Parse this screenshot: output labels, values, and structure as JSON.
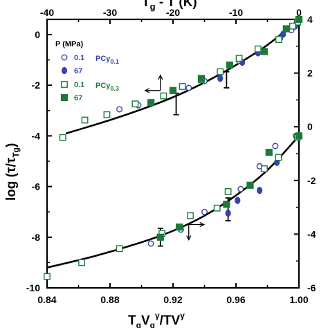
{
  "chart_data": {
    "type": "scatter",
    "title": "",
    "xlabel_bottom": "T",
    "xlabel_bottom_sub1": "g",
    "xlabel_bottom_mid": "V",
    "xlabel_bottom_sub2": "g",
    "xlabel_bottom_sup1": "γ",
    "xlabel_bottom_tail": "/TV",
    "xlabel_bottom_sup2": "γ",
    "xlabel_top": "T",
    "xlabel_top_sub": "g",
    "xlabel_top_tail": " - T (K)",
    "ylabel_left": "log (τ/τ",
    "ylabel_left_sub": "Tg",
    "ylabel_left_close": ")",
    "xlim": [
      0.84,
      1.0
    ],
    "ylim": [
      -10,
      0.6
    ],
    "top_xlim": [
      -40,
      0
    ],
    "right_ylim": [
      -6,
      4
    ],
    "xticks": [
      "0.84",
      "0.88",
      "0.92",
      "0.96",
      "1.00"
    ],
    "yticks_left": [
      "0",
      "-2",
      "-4",
      "-6",
      "-8",
      "-10"
    ],
    "xticks_top": [
      "-40",
      "-30",
      "-20",
      "-10",
      "0"
    ],
    "yticks_right": [
      "4",
      "2",
      "0",
      "-2",
      "-4",
      "-6"
    ],
    "legend": {
      "header": "P (MPa)",
      "entries": [
        {
          "marker": "open-circle",
          "color": "#3344aa",
          "pressure": "0.1",
          "group": "PCy",
          "group_sub": "0.1"
        },
        {
          "marker": "filled-circle",
          "color": "#3344aa",
          "pressure": "67",
          "group": "",
          "group_sub": ""
        },
        {
          "marker": "open-square",
          "color": "#1a7a3a",
          "pressure": "0.1",
          "group": "PCy",
          "group_sub": "0.3"
        },
        {
          "marker": "filled-square",
          "color": "#1a7a3a",
          "pressure": "67",
          "group": "",
          "group_sub": ""
        }
      ]
    },
    "series": [
      {
        "name": "PCy0.1 0.1 MPa",
        "marker": "open-circle",
        "color": "#3344aa",
        "axis": "top-right",
        "x": [
          -0.3,
          -1.2,
          -3,
          -6.5,
          -9.5,
          -12.5,
          -15,
          -17.5,
          -21.5,
          -25.5,
          -28.5
        ],
        "y": [
          3.95,
          3.6,
          3.3,
          2.85,
          2.45,
          2.0,
          1.7,
          1.45,
          1.15,
          0.8,
          0.65
        ]
      },
      {
        "name": "PCy0.1 67 MPa",
        "marker": "filled-circle",
        "color": "#3344aa",
        "axis": "top-right",
        "x": [
          -0.6,
          -2.5,
          -6.5,
          -9.0,
          -12.5
        ],
        "y": [
          3.75,
          3.45,
          2.75,
          2.4,
          1.8
        ]
      },
      {
        "name": "PCy0.3 0.1 MPa",
        "marker": "open-square",
        "color": "#1a7a3a",
        "axis": "top-right",
        "x": [
          -0.2,
          -1.0,
          -3.2,
          -6.5,
          -9.5,
          -12.5,
          -15.5,
          -18.5,
          -21.5,
          -26,
          -30.5,
          -34,
          -37.5
        ],
        "y": [
          3.9,
          3.75,
          3.25,
          2.9,
          2.55,
          2.05,
          1.75,
          1.5,
          1.15,
          0.85,
          0.45,
          0.25,
          -0.4
        ]
      },
      {
        "name": "PCy0.3 67 MPa",
        "marker": "filled-square",
        "color": "#1a7a3a",
        "axis": "top-right",
        "x": [
          0,
          -2.0,
          -5.5,
          -11.0,
          -15.5,
          -20,
          -23.5
        ],
        "y": [
          4.0,
          3.65,
          2.8,
          2.3,
          1.8,
          1.35,
          0.9
        ]
      },
      {
        "name": "PCy0.1 0.1 MPa (scaled)",
        "marker": "open-circle",
        "color": "#3344aa",
        "axis": "bottom-left",
        "x": [
          0.998,
          0.985,
          0.975,
          0.963,
          0.94,
          0.925,
          0.906
        ],
        "y": [
          -4.0,
          -4.4,
          -5.2,
          -6.1,
          -7.0,
          -7.7,
          -8.25
        ]
      },
      {
        "name": "PCy0.1 67 MPa (scaled)",
        "marker": "filled-circle",
        "color": "#3344aa",
        "axis": "bottom-left",
        "x": [
          0.986,
          0.975,
          0.961,
          0.955
        ],
        "y": [
          -5.05,
          -6.15,
          -6.55,
          -7.05
        ]
      },
      {
        "name": "PCy0.3 0.1 MPa (scaled)",
        "marker": "open-square",
        "color": "#1a7a3a",
        "axis": "bottom-left",
        "x": [
          0.999,
          0.987,
          0.978,
          0.955,
          0.948,
          0.931,
          0.913,
          0.886,
          0.862,
          0.84
        ],
        "y": [
          -4.05,
          -4.85,
          -5.3,
          -6.2,
          -6.85,
          -7.15,
          -7.85,
          -8.45,
          -9.0,
          -9.55
        ]
      },
      {
        "name": "PCy0.3 67 MPa (scaled)",
        "marker": "filled-square",
        "color": "#1a7a3a",
        "axis": "bottom-left",
        "x": [
          1.0,
          0.981,
          0.969,
          0.954,
          0.924,
          0.912
        ],
        "y": [
          -4.0,
          -4.65,
          -5.95,
          -6.7,
          -7.6,
          -8.0
        ]
      }
    ],
    "fit_curves": [
      {
        "axis": "top-right",
        "x": [
          -37,
          -30,
          -25,
          -20,
          -15,
          -10,
          -5,
          0
        ],
        "y": [
          -0.25,
          0.25,
          0.65,
          1.1,
          1.65,
          2.3,
          3.05,
          4.0
        ]
      },
      {
        "axis": "bottom-left",
        "x": [
          0.84,
          0.87,
          0.9,
          0.92,
          0.94,
          0.96,
          0.98,
          1.0
        ],
        "y": [
          -9.2,
          -8.75,
          -8.2,
          -7.75,
          -7.15,
          -6.35,
          -5.35,
          -4.0
        ]
      }
    ],
    "error_bars": [
      {
        "axis": "top-right",
        "x": -19.5,
        "y": 0.85,
        "err": 0.4
      },
      {
        "axis": "top-right",
        "x": -11.5,
        "y": 1.75,
        "err": 0.3
      },
      {
        "axis": "bottom-left",
        "x": 0.955,
        "y": -6.9,
        "err": 0.45
      },
      {
        "axis": "bottom-left",
        "x": 0.912,
        "y": -8.0,
        "err": 0.35
      }
    ],
    "axis_arrows": [
      {
        "axis": "top-right",
        "x": -22,
        "y": 1.35,
        "directions": [
          "up",
          "left"
        ]
      },
      {
        "axis": "bottom-left",
        "x": 0.93,
        "y": -7.5,
        "directions": [
          "down",
          "right"
        ]
      }
    ]
  }
}
